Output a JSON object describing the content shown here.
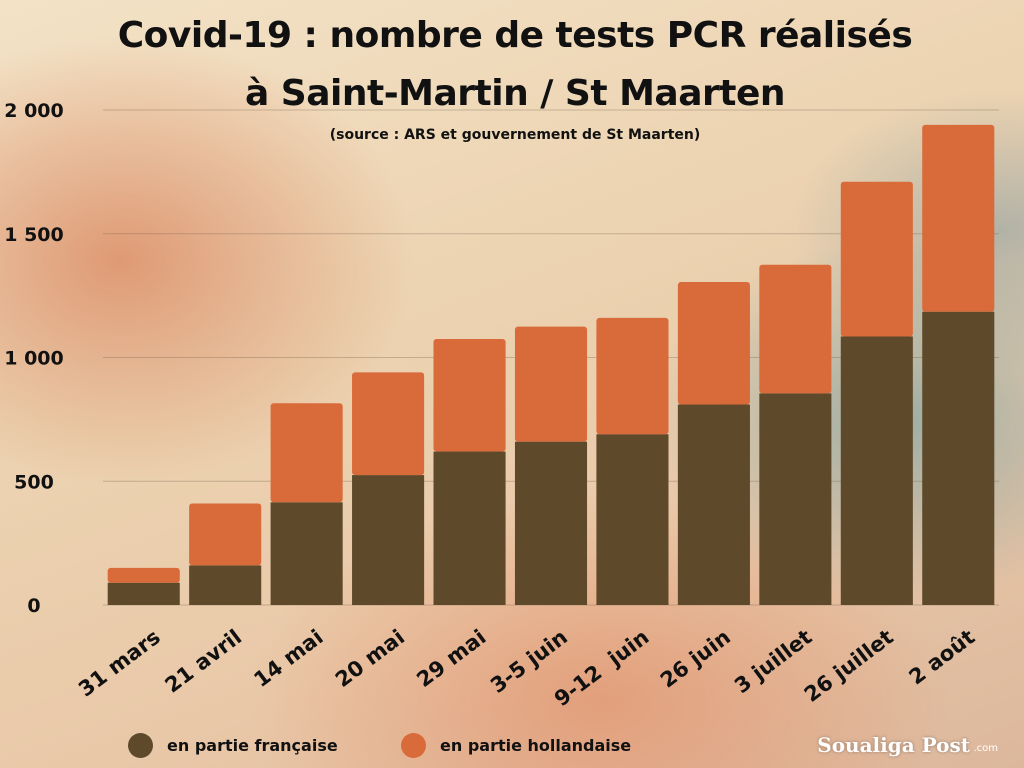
{
  "chart_data": {
    "type": "bar",
    "stacked": true,
    "title": "Covid-19 : nombre de tests PCR réalisés",
    "title_line2": "à Saint-Martin / St Maarten",
    "subtitle": "(source : ARS et gouvernement de St Maarten)",
    "xlabel": "",
    "ylabel": "",
    "ylim": [
      0,
      2000
    ],
    "yticks": [
      0,
      500,
      1000,
      1500,
      2000
    ],
    "ytick_labels": [
      "0",
      "500",
      "1 000",
      "1 500",
      "2 000"
    ],
    "grid": true,
    "legend_position": "bottom-left",
    "categories": [
      "31 mars",
      "21 avril",
      "14 mai",
      "20 mai",
      "29 mai",
      "3-5 juin",
      "9-12  juin",
      "26 juin",
      "3 juillet",
      "26 juillet",
      "2 août"
    ],
    "series": [
      {
        "name": "en partie française",
        "color": "#5e4a2b",
        "values": [
          90,
          160,
          415,
          525,
          620,
          660,
          690,
          810,
          855,
          1085,
          1185
        ]
      },
      {
        "name": "en partie hollandaise",
        "color": "#d96a3a",
        "values": [
          60,
          250,
          400,
          415,
          455,
          465,
          470,
          495,
          520,
          625,
          755
        ]
      }
    ]
  },
  "branding": {
    "logo": "Soualiga Post",
    "logo_suffix": ".com"
  }
}
